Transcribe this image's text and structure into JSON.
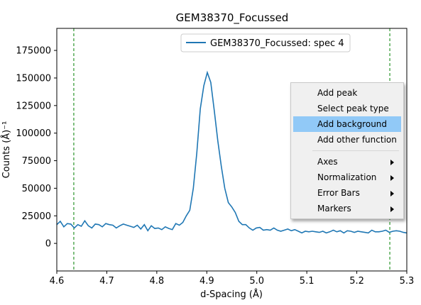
{
  "chart_data": {
    "type": "line",
    "title": "GEM38370_Focussed",
    "xlabel": "d-Spacing (Å)",
    "ylabel": "Counts (Å)⁻¹",
    "xlim": [
      4.6,
      5.3
    ],
    "ylim": [
      -25000,
      195000
    ],
    "x_ticks": [
      "4.6",
      "4.7",
      "4.8",
      "4.9",
      "5.0",
      "5.1",
      "5.2",
      "5.3"
    ],
    "y_ticks": [
      "0",
      "25000",
      "50000",
      "75000",
      "100000",
      "125000",
      "150000",
      "175000"
    ],
    "x_tick_values": [
      4.6,
      4.7,
      4.8,
      4.9,
      5.0,
      5.1,
      5.2,
      5.3
    ],
    "y_tick_values": [
      0,
      25000,
      50000,
      75000,
      100000,
      125000,
      150000,
      175000
    ],
    "legend": {
      "location": "upper center"
    },
    "vertical_markers": [
      4.634,
      5.266
    ],
    "colors": {
      "series": "#1f77b4",
      "marker": "#008000"
    },
    "series": [
      {
        "name": "GEM38370_Focussed: spec 4",
        "x": [
          4.6,
          4.607,
          4.614,
          4.621,
          4.628,
          4.635,
          4.642,
          4.649,
          4.656,
          4.663,
          4.67,
          4.677,
          4.684,
          4.691,
          4.698,
          4.705,
          4.712,
          4.719,
          4.726,
          4.733,
          4.74,
          4.747,
          4.754,
          4.761,
          4.768,
          4.775,
          4.782,
          4.789,
          4.796,
          4.803,
          4.81,
          4.817,
          4.824,
          4.831,
          4.838,
          4.845,
          4.852,
          4.859,
          4.866,
          4.873,
          4.88,
          4.887,
          4.894,
          4.901,
          4.908,
          4.915,
          4.922,
          4.929,
          4.936,
          4.943,
          4.95,
          4.957,
          4.964,
          4.971,
          4.978,
          4.985,
          4.992,
          4.999,
          5.006,
          5.013,
          5.02,
          5.027,
          5.034,
          5.041,
          5.048,
          5.055,
          5.062,
          5.069,
          5.076,
          5.083,
          5.09,
          5.097,
          5.104,
          5.111,
          5.118,
          5.125,
          5.132,
          5.139,
          5.146,
          5.153,
          5.16,
          5.167,
          5.174,
          5.181,
          5.188,
          5.195,
          5.202,
          5.209,
          5.216,
          5.223,
          5.23,
          5.237,
          5.244,
          5.251,
          5.258,
          5.265,
          5.272,
          5.279,
          5.286,
          5.293,
          5.3
        ],
        "y": [
          17000,
          20000,
          15000,
          18000,
          17500,
          14000,
          17000,
          15500,
          20500,
          16000,
          14000,
          17500,
          17000,
          15000,
          18000,
          17000,
          16500,
          14000,
          16000,
          17500,
          16500,
          15500,
          14500,
          16500,
          13000,
          17000,
          11500,
          16000,
          13500,
          14000,
          12500,
          15000,
          13500,
          12500,
          18000,
          16500,
          19000,
          25000,
          30000,
          50000,
          82000,
          122000,
          143000,
          155000,
          146000,
          120000,
          93000,
          70000,
          50000,
          37000,
          33000,
          28000,
          20000,
          17000,
          17000,
          14000,
          12000,
          14000,
          14500,
          12000,
          12500,
          12000,
          14000,
          12000,
          11000,
          12000,
          13000,
          11500,
          12500,
          11000,
          9500,
          11000,
          10500,
          11000,
          10500,
          10000,
          11000,
          9500,
          10500,
          12000,
          10500,
          11500,
          9500,
          11500,
          11000,
          10000,
          11000,
          10500,
          10000,
          9500,
          12000,
          10500,
          10500,
          11000,
          12000,
          10000,
          11000,
          11500,
          11000,
          10000,
          9500
        ]
      }
    ]
  },
  "context_menu": {
    "items": [
      {
        "label": "Add peak",
        "submenu": false,
        "highlighted": false
      },
      {
        "label": "Select peak type",
        "submenu": false,
        "highlighted": false
      },
      {
        "label": "Add background",
        "submenu": false,
        "highlighted": true
      },
      {
        "label": "Add other function",
        "submenu": false,
        "highlighted": false
      },
      {
        "separator": true
      },
      {
        "label": "Axes",
        "submenu": true,
        "highlighted": false
      },
      {
        "label": "Normalization",
        "submenu": true,
        "highlighted": false
      },
      {
        "label": "Error Bars",
        "submenu": true,
        "highlighted": false
      },
      {
        "label": "Markers",
        "submenu": true,
        "highlighted": false
      }
    ]
  }
}
